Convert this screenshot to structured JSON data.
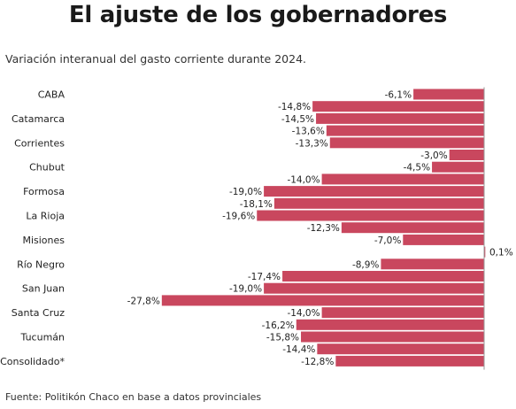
{
  "header": {
    "title": "El ajuste de los gobernadores",
    "subtitle": "Variación interanual del gasto corriente durante 2024."
  },
  "footer": {
    "source": "Fuente: Politikón Chaco en base a datos provinciales"
  },
  "colors": {
    "bar": "#c9475e",
    "axis": "#9a9a9a"
  },
  "chart_data": {
    "type": "bar",
    "orientation": "horizontal",
    "title": "El ajuste de los gobernadores",
    "subtitle": "Variación interanual del gasto corriente durante 2024.",
    "categories": [
      "CABA",
      "Catamarca",
      "Corrientes",
      "Chubut",
      "Formosa",
      "La Rioja",
      "Misiones",
      "Río Negro",
      "San Juan",
      "Santa Cruz",
      "Tucumán",
      "Consolidado*"
    ],
    "rows": [
      {
        "label": "CABA",
        "value": -6.1,
        "text": "-6,1%"
      },
      {
        "label": "",
        "value": -14.8,
        "text": "-14,8%"
      },
      {
        "label": "Catamarca",
        "value": -14.5,
        "text": "-14,5%"
      },
      {
        "label": "",
        "value": -13.6,
        "text": "-13,6%"
      },
      {
        "label": "Corrientes",
        "value": -13.3,
        "text": "-13,3%"
      },
      {
        "label": "",
        "value": -3.0,
        "text": "-3,0%"
      },
      {
        "label": "Chubut",
        "value": -4.5,
        "text": "-4,5%"
      },
      {
        "label": "",
        "value": -14.0,
        "text": "-14,0%"
      },
      {
        "label": "Formosa",
        "value": -19.0,
        "text": "-19,0%"
      },
      {
        "label": "",
        "value": -18.1,
        "text": "-18,1%"
      },
      {
        "label": "La Rioja",
        "value": -19.6,
        "text": "-19,6%"
      },
      {
        "label": "",
        "value": -12.3,
        "text": "-12,3%"
      },
      {
        "label": "Misiones",
        "value": -7.0,
        "text": "-7,0%"
      },
      {
        "label": "",
        "value": 0.1,
        "text": "0,1%"
      },
      {
        "label": "Río Negro",
        "value": -8.9,
        "text": "-8,9%"
      },
      {
        "label": "",
        "value": -17.4,
        "text": "-17,4%"
      },
      {
        "label": "San Juan",
        "value": -19.0,
        "text": "-19,0%"
      },
      {
        "label": "",
        "value": -27.8,
        "text": "-27,8%"
      },
      {
        "label": "Santa Cruz",
        "value": -14.0,
        "text": "-14,0%"
      },
      {
        "label": "",
        "value": -16.2,
        "text": "-16,2%"
      },
      {
        "label": "Tucumán",
        "value": -15.8,
        "text": "-15,8%"
      },
      {
        "label": "",
        "value": -14.4,
        "text": "-14,4%"
      },
      {
        "label": "Consolidado*",
        "value": -12.8,
        "text": "-12,8%"
      }
    ],
    "xlim": [
      -28,
      0.5
    ],
    "grid": false,
    "legend": "none"
  }
}
